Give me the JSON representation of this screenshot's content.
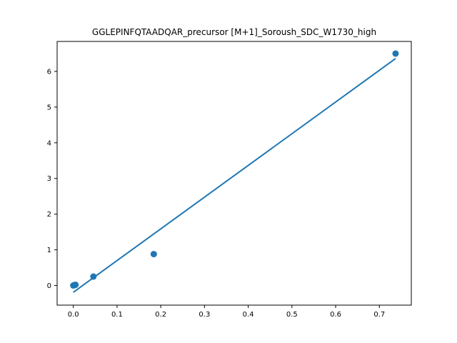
{
  "chart_data": {
    "type": "scatter",
    "title": "GGLEPINFQTAADQAR_precursor [M+1]_Soroush_SDC_W1730_high",
    "xlabel": "",
    "ylabel": "",
    "xlim": [
      -0.037,
      0.773
    ],
    "ylim": [
      -0.55,
      6.84
    ],
    "grid": false,
    "x_ticks": [
      0.0,
      0.1,
      0.2,
      0.3,
      0.4,
      0.5,
      0.6,
      0.7
    ],
    "x_tick_labels": [
      "0.0",
      "0.1",
      "0.2",
      "0.3",
      "0.4",
      "0.5",
      "0.6",
      "0.7"
    ],
    "y_ticks": [
      0,
      1,
      2,
      3,
      4,
      5,
      6
    ],
    "y_tick_labels": [
      "0",
      "1",
      "2",
      "3",
      "4",
      "5",
      "6"
    ],
    "colors": {
      "series": "#1f77b4"
    },
    "series": [
      {
        "kind": "scatter",
        "x": [
          0.0,
          0.002,
          0.005,
          0.046,
          0.184,
          0.737
        ],
        "y": [
          0.0,
          0.01,
          0.02,
          0.25,
          0.88,
          6.5
        ]
      },
      {
        "kind": "line",
        "x": [
          0.0,
          0.737
        ],
        "y": [
          -0.19,
          6.36
        ]
      }
    ]
  }
}
